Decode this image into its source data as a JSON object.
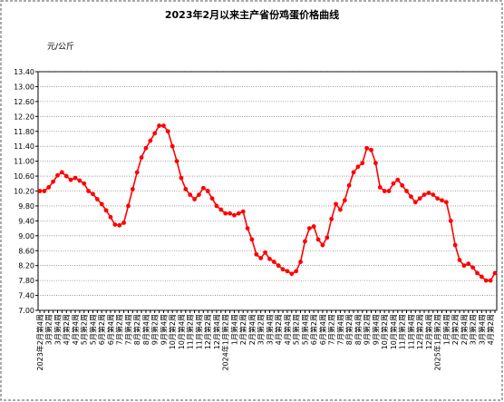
{
  "chart_data": {
    "type": "line",
    "title": "2023年2月以来主产省份鸡蛋价格曲线",
    "y_label": "元/公斤",
    "color": "#ff0000",
    "grid": true,
    "ylim": [
      7.0,
      13.4
    ],
    "yticks": [
      {
        "value": 7.0,
        "label": "7.00"
      },
      {
        "value": 7.4,
        "label": "7.40"
      },
      {
        "value": 7.8,
        "label": "7.80"
      },
      {
        "value": 8.2,
        "label": "8.20"
      },
      {
        "value": 8.6,
        "label": "8.60"
      },
      {
        "value": 9.0,
        "label": "9.00"
      },
      {
        "value": 9.4,
        "label": "9.40"
      },
      {
        "value": 9.8,
        "label": "9.80"
      },
      {
        "value": 10.2,
        "label": "10.20"
      },
      {
        "value": 10.6,
        "label": "10.60"
      },
      {
        "value": 11.0,
        "label": "11.00"
      },
      {
        "value": 11.4,
        "label": "11.40"
      },
      {
        "value": 11.8,
        "label": "11.80"
      },
      {
        "value": 12.2,
        "label": "12.20"
      },
      {
        "value": 12.6,
        "label": "12.60"
      },
      {
        "value": 13.0,
        "label": "13.00"
      },
      {
        "value": 13.4,
        "label": "13.40"
      }
    ],
    "categories": [
      "2023年2月第4周",
      null,
      "3月第2周",
      null,
      "3月第4周",
      null,
      "4月第2周",
      null,
      "4月第4周",
      null,
      "5月第2周",
      null,
      "5月第4周",
      null,
      "6月第2周",
      null,
      "6月第4周",
      null,
      "7月第2周",
      null,
      "7月第4周",
      null,
      "8月第2周",
      null,
      "8月第4周",
      null,
      "9月第2周",
      null,
      "9月第4周",
      null,
      "10月第2周",
      null,
      "10月第4周",
      null,
      "11月第2周",
      null,
      "11月第4周",
      null,
      "12月第2周",
      null,
      "12月第4周",
      null,
      "2024年1月第2周",
      null,
      "1月第4周",
      null,
      "2月第2周",
      null,
      "2月第4周",
      null,
      "3月第2周",
      null,
      "3月第4周",
      null,
      "4月第2周",
      null,
      "4月第4周",
      null,
      "5月第2周",
      null,
      "5月第4周",
      null,
      "6月第2周",
      null,
      "6月第4周",
      null,
      "7月第2周",
      null,
      "7月第4周",
      null,
      "8月第2周",
      null,
      "8月第4周",
      null,
      "9月第2周",
      null,
      "9月第4周",
      null,
      "10月第2周",
      null,
      "10月第4周",
      null,
      "11月第2周",
      null,
      "11月第4周",
      null,
      "12月第2周",
      null,
      "12月第4周",
      null,
      "2025年1月第2周",
      null,
      "1月第4周",
      null,
      "2月第2周",
      null,
      "2月第4周",
      null,
      "3月第2周",
      null,
      "3月第4周",
      null,
      "4月第2周",
      null
    ],
    "values": [
      10.2,
      10.2,
      10.3,
      10.45,
      10.62,
      10.7,
      10.6,
      10.5,
      10.55,
      10.48,
      10.4,
      10.2,
      10.12,
      9.98,
      9.85,
      9.68,
      9.5,
      9.3,
      9.28,
      9.35,
      9.8,
      10.25,
      10.7,
      11.1,
      11.35,
      11.55,
      11.75,
      11.95,
      11.95,
      11.8,
      11.4,
      11.0,
      10.55,
      10.25,
      10.1,
      9.98,
      10.1,
      10.28,
      10.2,
      10.0,
      9.8,
      9.7,
      9.6,
      9.6,
      9.55,
      9.6,
      9.65,
      9.2,
      8.9,
      8.5,
      8.4,
      8.55,
      8.38,
      8.3,
      8.2,
      8.1,
      8.05,
      7.98,
      8.05,
      8.3,
      8.85,
      9.2,
      9.25,
      8.9,
      8.75,
      8.95,
      9.45,
      9.85,
      9.7,
      9.95,
      10.35,
      10.7,
      10.85,
      10.95,
      11.35,
      11.3,
      10.95,
      10.3,
      10.2,
      10.2,
      10.4,
      10.5,
      10.35,
      10.2,
      10.05,
      9.9,
      10.0,
      10.1,
      10.15,
      10.1,
      10.0,
      9.95,
      9.9,
      9.4,
      8.75,
      8.35,
      8.2,
      8.25,
      8.15,
      8.0,
      7.9,
      7.8,
      7.8,
      8.0
    ]
  }
}
